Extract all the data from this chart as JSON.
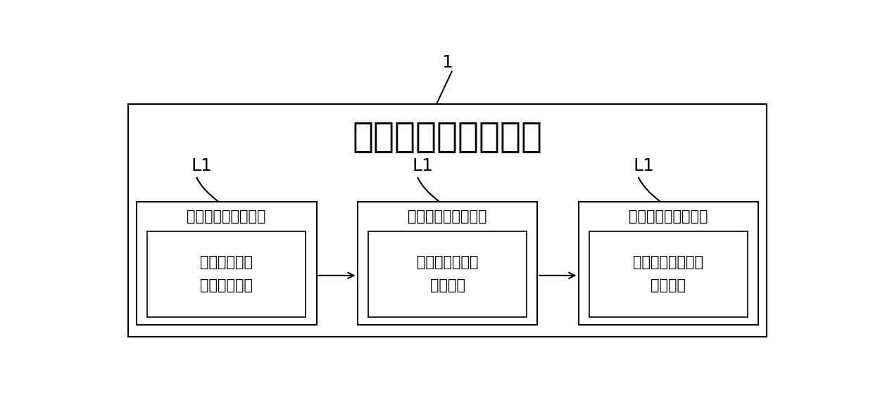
{
  "bg_color": "#ffffff",
  "title_label": "1",
  "main_title": "射频功率放大器系统",
  "sub_labels": [
    "L1",
    "L1",
    "L1"
  ],
  "box1_title": "第一级功率放大电路",
  "box2_title": "第二级功率放大电路",
  "box3_title": "第三级功率放大电路",
  "box1_sub": "磷化镓铟异质\n结双级晶体管",
  "box2_sub": "砷化镓异质结双\n级晶体管",
  "box3_sub": "氮化镓高电子迁移\n率晶体管",
  "line_color": "#000000",
  "box_edge_color": "#000000",
  "text_color": "#000000",
  "main_fontsize": 36,
  "sub_fontsize": 15,
  "label_fontsize": 18,
  "annotation_fontsize": 18
}
